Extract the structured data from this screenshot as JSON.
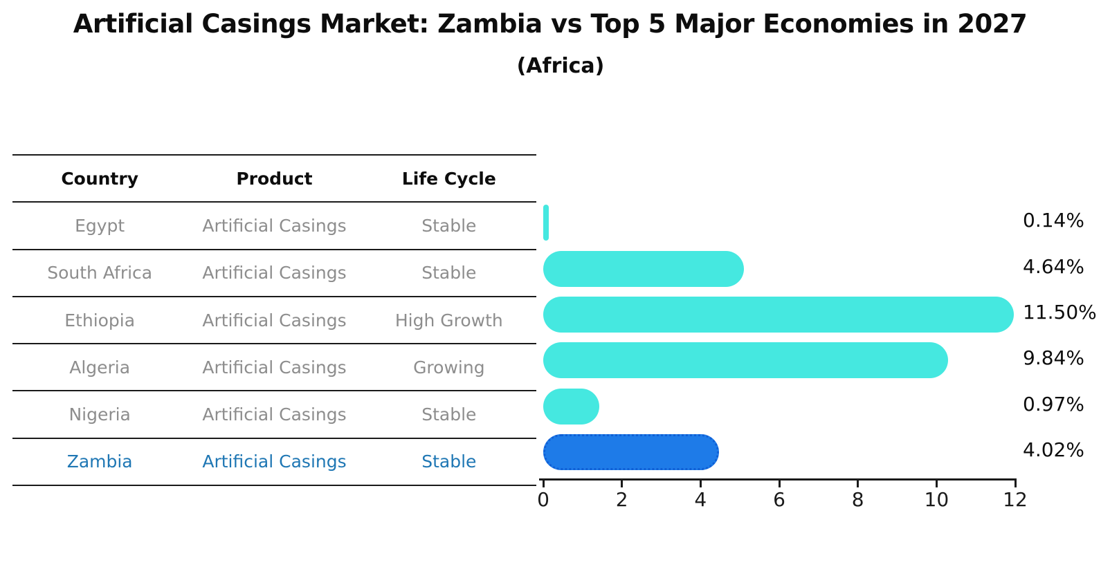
{
  "header": {
    "title": "Artificial Casings Market: Zambia vs Top 5 Major Economies in 2027",
    "subtitle": "(Africa)"
  },
  "table": {
    "columns": [
      "Country",
      "Product",
      "Life Cycle"
    ],
    "rows": [
      {
        "country": "Egypt",
        "product": "Artificial Casings",
        "life_cycle": "Stable",
        "highlight": false
      },
      {
        "country": "South Africa",
        "product": "Artificial Casings",
        "life_cycle": "Stable",
        "highlight": false
      },
      {
        "country": "Ethiopia",
        "product": "Artificial Casings",
        "life_cycle": "High Growth",
        "highlight": false
      },
      {
        "country": "Algeria",
        "product": "Artificial Casings",
        "life_cycle": "Growing",
        "highlight": false
      },
      {
        "country": "Nigeria",
        "product": "Artificial Casings",
        "life_cycle": "Stable",
        "highlight": false
      },
      {
        "country": "Zambia",
        "product": "Artificial Casings",
        "life_cycle": "Stable",
        "highlight": true
      }
    ]
  },
  "chart_data": {
    "type": "bar",
    "orientation": "horizontal",
    "title": "Artificial Casings Market: Zambia vs Top 5 Major Economies in 2027",
    "subtitle": "(Africa)",
    "categories": [
      "Egypt",
      "South Africa",
      "Ethiopia",
      "Algeria",
      "Nigeria",
      "Zambia"
    ],
    "values": [
      0.14,
      4.64,
      11.5,
      9.84,
      0.97,
      4.02
    ],
    "value_labels": [
      "0.14%",
      "4.64%",
      "11.50%",
      "9.84%",
      "0.97%",
      "4.02%"
    ],
    "xlabel": "",
    "ylabel": "",
    "xlim": [
      0,
      12
    ],
    "xticks": [
      0,
      2,
      4,
      6,
      8,
      10,
      12
    ],
    "grid": false,
    "legend": false,
    "highlight_index": 5,
    "bar_color": "#45E8E0",
    "highlight_bar_color": "#1E7BE8",
    "highlight_border_color": "#0F5FD6",
    "highlight_text_color": "#1f77b4"
  }
}
